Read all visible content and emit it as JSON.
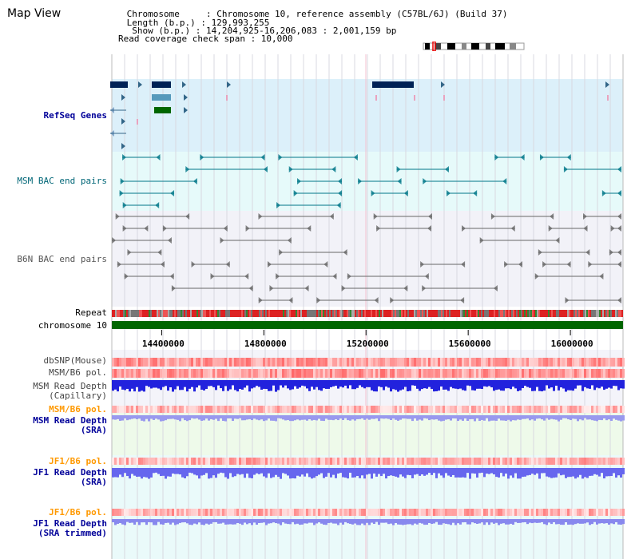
{
  "header": {
    "title": "Map View",
    "info_lines": [
      " Chromosome     : Chromosome 10, reference assembly (C57BL/6J) (Build 37)",
      " Length (b.p.) : 129,993,255",
      "  Show (b.p.) : 14,204,925-16,206,083 : 2,001,159 bp",
      "Read coverage check span : 10,000"
    ]
  },
  "tracks": {
    "refseq": {
      "label": "RefSeq Genes",
      "color": "#000099"
    },
    "msm_bac": {
      "label": "MSM BAC end pairs",
      "color": "#006677"
    },
    "b6n_bac": {
      "label": "B6N BAC end pairs",
      "color": "#555555"
    },
    "repeat": {
      "label": "Repeat"
    },
    "chromosome": {
      "label": "chromosome 10"
    },
    "dbsnp": {
      "label": "dbSNP(Mouse)"
    },
    "msm_b6_pol": {
      "label": "MSM/B6 pol."
    },
    "msm_read_depth_cap": {
      "label": "MSM Read Depth\n(Capillary)"
    },
    "msm_b6_pol_2": {
      "label": "MSM/B6 pol."
    },
    "msm_read_depth_sra": {
      "label": "MSM Read Depth\n(SRA)"
    },
    "jf1_b6_pol": {
      "label": "JF1/B6 pol."
    },
    "jf1_read_depth_sra": {
      "label": "JF1 Read Depth\n(SRA)"
    },
    "jf1_b6_pol_2": {
      "label": "JF1/B6 pol."
    },
    "jf1_read_depth_trim": {
      "label": "JF1 Read Depth\n(SRA trimmed)"
    }
  },
  "axis": {
    "ticks": [
      "14400000",
      "14800000",
      "15200000",
      "15600000",
      "16000000"
    ],
    "tick_values": [
      14400000,
      14800000,
      15200000,
      15600000,
      16000000
    ],
    "range_start": 14204925,
    "range_end": 16206083
  },
  "colors": {
    "refseq_bg": "#dcf0fa",
    "msm_bg": "#e6fafa",
    "b6n_bg": "#f2f2f8",
    "chromosome_bar": "#006600",
    "depth_blue": "#2222dd",
    "depth_light": "#8888ee",
    "pol_red": "#ee3333",
    "orange_label": "#ff9900",
    "navy_label": "#000099"
  }
}
